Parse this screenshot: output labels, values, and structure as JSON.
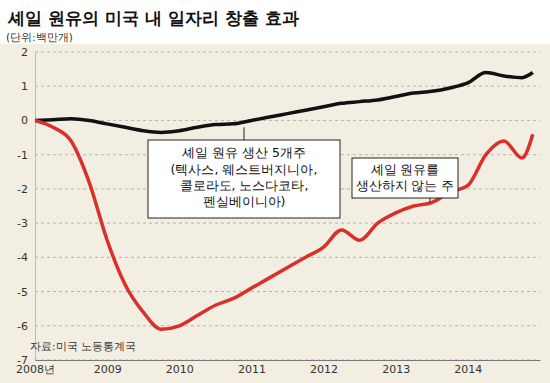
{
  "chart_data": {
    "type": "line",
    "title": "셰일 원유의 미국 내 일자리 창출 효과",
    "ylabel": "(단위:백만개)",
    "source": "자료:미국 노동통계국",
    "annotations": [
      "(텍사스, 웨스트버지니아, 콜로라도, 노스다코타, 펜실베이니아)"
    ],
    "x": [
      2008,
      2008.25,
      2008.5,
      2008.75,
      2009,
      2009.25,
      2009.5,
      2009.75,
      2010,
      2010.25,
      2010.5,
      2010.75,
      2011,
      2011.25,
      2011.5,
      2011.75,
      2012,
      2012.25,
      2012.5,
      2012.75,
      2013,
      2013.25,
      2013.5,
      2013.75,
      2014,
      2014.25,
      2014.5,
      2014.75,
      2014.9
    ],
    "series": [
      {
        "name": "셰일 원유 생산 5개주",
        "color": "#111111",
        "values": [
          0,
          0.02,
          0.05,
          0,
          -0.1,
          -0.2,
          -0.3,
          -0.35,
          -0.3,
          -0.2,
          -0.12,
          -0.1,
          0,
          0.1,
          0.2,
          0.3,
          0.4,
          0.5,
          0.55,
          0.6,
          0.7,
          0.8,
          0.85,
          0.95,
          1.1,
          1.4,
          1.3,
          1.25,
          1.4
        ]
      },
      {
        "name": "셰일 원유를 생산하지 않는 주",
        "color": "#d9302c",
        "values": [
          0,
          -0.2,
          -0.6,
          -1.8,
          -3.5,
          -4.8,
          -5.6,
          -6.1,
          -6.0,
          -5.7,
          -5.4,
          -5.2,
          -4.9,
          -4.6,
          -4.3,
          -4.0,
          -3.7,
          -3.2,
          -3.5,
          -3.0,
          -2.7,
          -2.5,
          -2.4,
          -2.1,
          -1.9,
          -1.0,
          -0.6,
          -1.1,
          -0.4
        ]
      }
    ],
    "xlim": [
      2008,
      2015
    ],
    "xticks": [
      {
        "value": 2008,
        "label": "2008년"
      },
      2009,
      2010,
      2011,
      2012,
      2013,
      2014
    ],
    "ylim": [
      -7,
      2
    ],
    "yticks": [
      -7,
      -6,
      -5,
      -4,
      -3,
      -2,
      -1,
      0,
      1,
      2
    ],
    "grid": true
  }
}
